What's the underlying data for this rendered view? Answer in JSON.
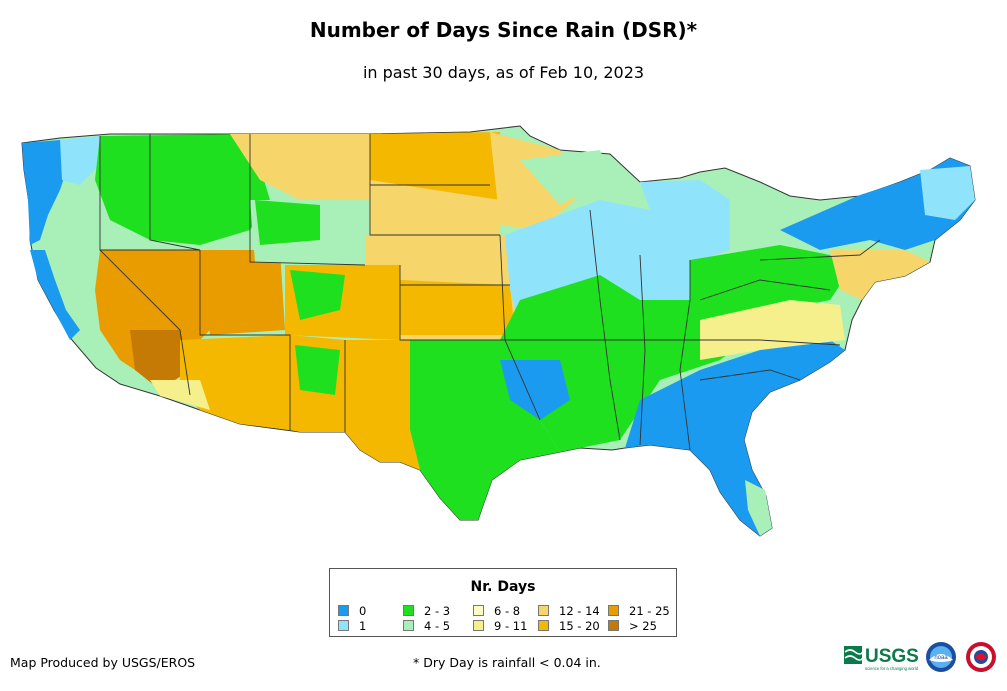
{
  "title": "Number of Days Since Rain (DSR)*",
  "subtitle": "in past 30 days, as of Feb 10, 2023",
  "legend": {
    "title": "Nr. Days",
    "items": [
      {
        "label": "0",
        "color": "#1a9bf0"
      },
      {
        "label": "1",
        "color": "#8fe3fb"
      },
      {
        "label": "2 - 3",
        "color": "#1ee01e"
      },
      {
        "label": "4 - 5",
        "color": "#a8f0b8"
      },
      {
        "label": "6 - 8",
        "color": "#fbfbc8"
      },
      {
        "label": "9 - 11",
        "color": "#f6f08c"
      },
      {
        "label": "12 - 14",
        "color": "#f6d66a"
      },
      {
        "label": "15 - 20",
        "color": "#f4b800"
      },
      {
        "label": "21 - 25",
        "color": "#e99c00"
      },
      {
        "label": "> 25",
        "color": "#c67a06"
      }
    ]
  },
  "footer": {
    "credit": "Map Produced by USGS/EROS",
    "note": "* Dry Day is rainfall < 0.04 in."
  },
  "logos": {
    "usgs": "USGS",
    "usgs_tagline": "science for a changing world",
    "noaa": "noaa"
  }
}
